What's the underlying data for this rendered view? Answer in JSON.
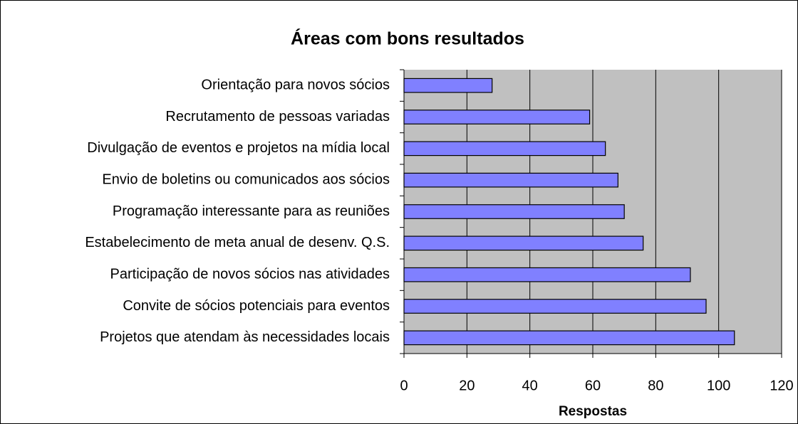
{
  "chart_data": {
    "type": "bar",
    "orientation": "horizontal",
    "title": "Áreas com bons resultados",
    "x_label": "Respostas",
    "categories": [
      "Orientação para novos sócios",
      "Recrutamento de pessoas variadas",
      "Divulgação de eventos e projetos na mídia local",
      "Envio de boletins ou comunicados aos sócios",
      "Programação interessante para as reuniões",
      "Estabelecimento de meta anual de desenv. Q.S.",
      "Participação de novos sócios nas atividades",
      "Convite de sócios potenciais para eventos",
      "Projetos que atendam às necessidades locais"
    ],
    "values": [
      28,
      59,
      64,
      68,
      70,
      76,
      91,
      96,
      105
    ],
    "color": "#8080ff",
    "plot_background": "#c0c0c0",
    "xlim": [
      0,
      120
    ],
    "xticks": [
      0,
      20,
      40,
      60,
      80,
      100,
      120
    ],
    "grid": true
  }
}
